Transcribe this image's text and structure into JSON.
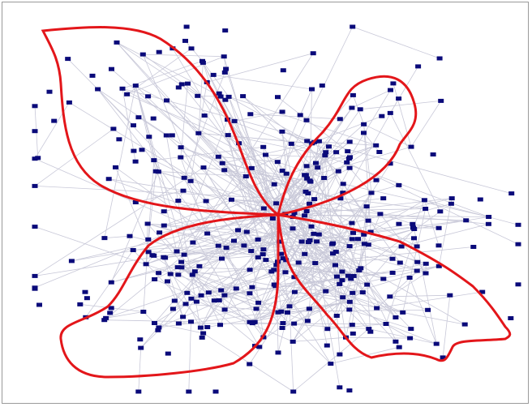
{
  "diagram": {
    "type": "network-graph",
    "edge_color": "#c8c8d8",
    "node_color": "#0a0a7a",
    "cluster_outline_color": "#e3161a",
    "cluster_count": 4,
    "background": "#ffffff"
  }
}
